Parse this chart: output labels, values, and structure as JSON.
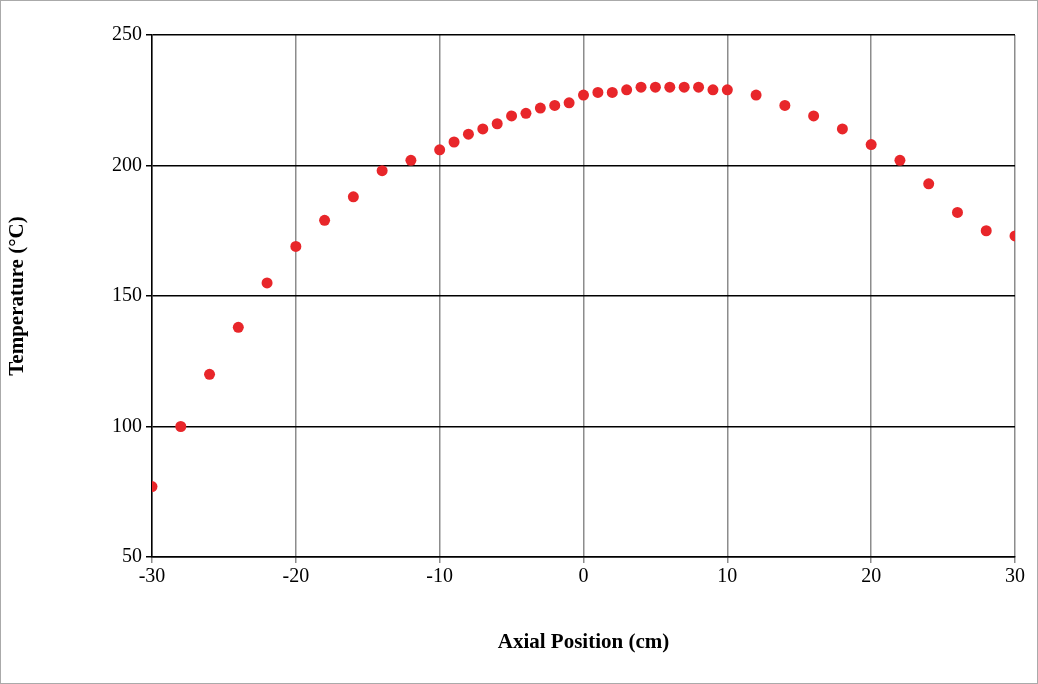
{
  "chart_data": {
    "type": "scatter",
    "xlabel": "Axial Position (cm)",
    "ylabel": "Temperature (°C)",
    "x": [
      -30,
      -28,
      -26,
      -24,
      -22,
      -20,
      -18,
      -16,
      -14,
      -12,
      -10,
      -9,
      -8,
      -7,
      -6,
      -5,
      -4,
      -3,
      -2,
      -1,
      0,
      1,
      2,
      3,
      4,
      5,
      6,
      7,
      8,
      9,
      10,
      12,
      14,
      16,
      18,
      20,
      22,
      24,
      26,
      28,
      30
    ],
    "series": [
      {
        "color": "#e8262a",
        "values": [
          77,
          100,
          120,
          138,
          155,
          169,
          179,
          188,
          198,
          202,
          206,
          209,
          212,
          214,
          216,
          219,
          220,
          222,
          223,
          224,
          227,
          228,
          228,
          229,
          230,
          230,
          230,
          230,
          230,
          229,
          229,
          227,
          223,
          219,
          214,
          208,
          202,
          193,
          182,
          175,
          173
        ]
      }
    ],
    "xlim": [
      -30,
      30
    ],
    "xticks": [
      -30,
      -20,
      -10,
      0,
      10,
      20,
      30
    ],
    "ylim": [
      50,
      250
    ],
    "yticks": [
      50,
      100,
      150,
      200,
      250
    ],
    "grid": true,
    "legend": false,
    "marker": "circle"
  }
}
